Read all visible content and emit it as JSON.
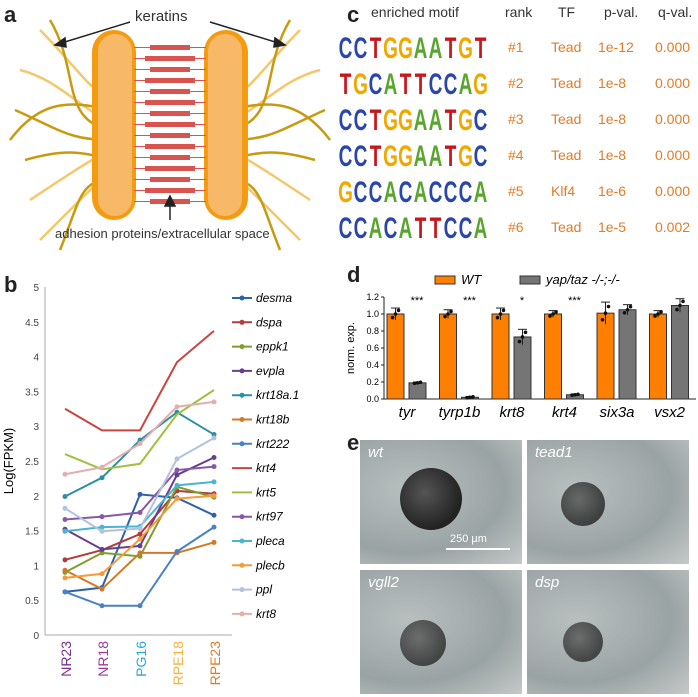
{
  "panels": {
    "a": "a",
    "b": "b",
    "c": "c",
    "d": "d",
    "e": "e"
  },
  "panel_a": {
    "top_label": "keratins",
    "bottom_label": "adhesion proteins/extracellular space"
  },
  "panel_c": {
    "headers": [
      "enriched motif",
      "rank",
      "TF",
      "p-val.",
      "q-val."
    ],
    "rows": [
      {
        "motif": "CCTGGAATGT",
        "rank": "#1",
        "tf": "Tead",
        "p": "1e-12",
        "q": "0.000"
      },
      {
        "motif": "TGCATTCCAG",
        "rank": "#2",
        "tf": "Tead",
        "p": "1e-8",
        "q": "0.000"
      },
      {
        "motif": "CCTGGAATGC",
        "rank": "#3",
        "tf": "Tead",
        "p": "1e-8",
        "q": "0.000"
      },
      {
        "motif": "CCTGGAATGC",
        "rank": "#4",
        "tf": "Tead",
        "p": "1e-8",
        "q": "0.000"
      },
      {
        "motif": "GCCACACCCA",
        "rank": "#5",
        "tf": "Klf4",
        "p": "1e-6",
        "q": "0.000"
      },
      {
        "motif": "CCACATTCCA",
        "rank": "#6",
        "tf": "Tead",
        "p": "1e-5",
        "q": "0.002"
      }
    ],
    "base_colors": {
      "A": "#5aa52e",
      "C": "#2a46a8",
      "G": "#f0a800",
      "T": "#c8161d"
    }
  },
  "panel_e": {
    "images": [
      "wt",
      "tead1",
      "vgll2",
      "dsp"
    ],
    "scale_bar": "250 µm"
  },
  "chart_data": [
    {
      "type": "line",
      "ylabel": "Log(FPKM)",
      "ylim": [
        0,
        5
      ],
      "yticks": [
        "0",
        "0.5",
        "1",
        "1.5",
        "2",
        "2.5",
        "3",
        "3.5",
        "4",
        "4.5",
        "5"
      ],
      "categories": [
        "NR23",
        "NR18",
        "PG16",
        "RPE18",
        "RPE23"
      ],
      "category_colors": [
        "#7a2e8e",
        "#9c3a99",
        "#2aa7d8",
        "#f7b340",
        "#e07b28"
      ],
      "legend": "right",
      "series": [
        {
          "name": "desma",
          "color": "#2f62a5",
          "marker": "diamond",
          "values": [
            0.62,
            0.68,
            2.02,
            1.97,
            1.72
          ]
        },
        {
          "name": "dspa",
          "color": "#b23b3b",
          "marker": "square",
          "values": [
            1.08,
            1.22,
            1.45,
            2.07,
            2.03
          ]
        },
        {
          "name": "eppk1",
          "color": "#7e9e2e",
          "marker": "triangle",
          "values": [
            0.9,
            1.18,
            1.13,
            2.13,
            1.98
          ]
        },
        {
          "name": "evpla",
          "color": "#66408f",
          "marker": "x",
          "values": [
            1.52,
            1.23,
            1.28,
            2.3,
            2.55
          ]
        },
        {
          "name": "krt18a.1",
          "color": "#2e8fa0",
          "marker": "star",
          "values": [
            1.99,
            2.26,
            2.8,
            3.2,
            2.88
          ]
        },
        {
          "name": "krt18b",
          "color": "#d07a28",
          "marker": "circle",
          "values": [
            0.93,
            0.66,
            1.18,
            1.18,
            1.33
          ]
        },
        {
          "name": "krt222",
          "color": "#4a80c4",
          "marker": "plus",
          "values": [
            0.62,
            0.42,
            0.42,
            1.2,
            1.55
          ]
        },
        {
          "name": "krt4",
          "color": "#c9453e",
          "marker": "none",
          "values": [
            3.25,
            2.94,
            2.94,
            3.92,
            4.37
          ]
        },
        {
          "name": "krt5",
          "color": "#9fc23e",
          "marker": "none",
          "values": [
            2.6,
            2.38,
            2.46,
            3.17,
            3.52
          ]
        },
        {
          "name": "krt97",
          "color": "#8758a8",
          "marker": "diamond",
          "values": [
            1.66,
            1.7,
            1.76,
            2.37,
            2.42
          ]
        },
        {
          "name": "pleca",
          "color": "#4ab5d2",
          "marker": "square",
          "values": [
            1.49,
            1.55,
            1.56,
            2.15,
            2.2
          ]
        },
        {
          "name": "plecb",
          "color": "#f79a3a",
          "marker": "triangle",
          "values": [
            0.82,
            0.88,
            1.38,
            1.96,
            2.0
          ]
        },
        {
          "name": "ppl",
          "color": "#b3c1de",
          "marker": "x",
          "values": [
            1.82,
            1.49,
            1.53,
            2.53,
            2.83
          ]
        },
        {
          "name": "krt8",
          "color": "#e2aeae",
          "marker": "star",
          "values": [
            2.31,
            2.41,
            2.75,
            3.28,
            3.35
          ]
        }
      ]
    },
    {
      "type": "bar",
      "ylabel": "norm. exp.",
      "ylim": [
        0,
        1.2
      ],
      "yticks": [
        "0.0",
        "0.2",
        "0.4",
        "0.6",
        "0.8",
        "1.0",
        "1.2"
      ],
      "categories": [
        "tyr",
        "tyrp1b",
        "krt8",
        "krt4",
        "six3a",
        "vsx2"
      ],
      "legend": "top",
      "significance": [
        "***",
        "***",
        "*",
        "***",
        "",
        ""
      ],
      "series": [
        {
          "name": "WT",
          "color": "#ff7f00",
          "values": [
            1.0,
            1.0,
            1.0,
            1.0,
            1.01,
            1.0
          ],
          "err": [
            0.07,
            0.05,
            0.07,
            0.04,
            0.13,
            0.04
          ]
        },
        {
          "name": "yap/taz -/-;-/-",
          "color": "#757575",
          "values": [
            0.19,
            0.02,
            0.73,
            0.05,
            1.05,
            1.1
          ],
          "err": [
            0.01,
            0.01,
            0.09,
            0.01,
            0.06,
            0.08
          ]
        }
      ]
    }
  ]
}
